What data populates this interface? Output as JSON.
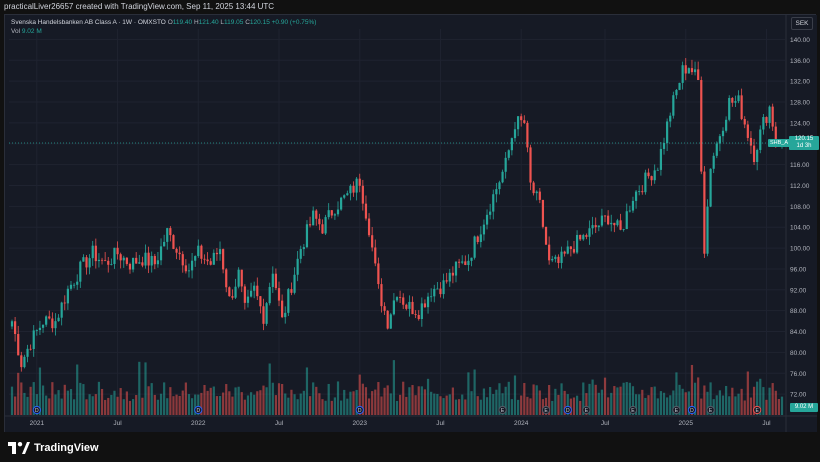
{
  "header": {
    "credit": "practicalLiver26657 created with TradingView.com, Sep 11, 2025 13:44 UTC"
  },
  "legend": {
    "title": "Svenska Handelsbanken AB Class A · 1W · OMXSTO",
    "open_label": "O",
    "open": "119.40",
    "high_label": "H",
    "high": "121.40",
    "low_label": "L",
    "low": "119.05",
    "close_label": "C",
    "close": "120.15",
    "change": "+0.90 (+0.75%)",
    "vol_label": "Vol",
    "vol": "9.02 M"
  },
  "toolbar": {
    "currency": "SEK"
  },
  "price_tag": {
    "value": "120.15",
    "countdown": "1d 3h"
  },
  "symbol_tag": "SHB_A",
  "volume_tag": "9.02 M",
  "footer": {
    "brand": "TradingView"
  },
  "colors": {
    "up": "#26a69a",
    "down": "#ef5350",
    "background": "#161a25",
    "grid": "#1f2330"
  },
  "chart_data": {
    "type": "candlestick",
    "price_axis": {
      "unit": "SEK",
      "ticks": [
        "140.00",
        "136.00",
        "132.00",
        "128.00",
        "124.00",
        "120.00",
        "116.00",
        "112.00",
        "108.00",
        "104.00",
        "100.00",
        "96.00",
        "92.00",
        "88.00",
        "84.00",
        "80.00",
        "76.00",
        "72.00"
      ],
      "range": [
        68,
        142
      ]
    },
    "time_axis": {
      "ticks": [
        "2021",
        "Jul",
        "2022",
        "Jul",
        "2023",
        "Jul",
        "2024",
        "Jul",
        "2025",
        "Jul"
      ]
    },
    "last_close": 120.15,
    "series_anchors": [
      {
        "week": 0,
        "close": 86
      },
      {
        "week": 3,
        "close": 78
      },
      {
        "week": 6,
        "close": 82
      },
      {
        "week": 10,
        "close": 86
      },
      {
        "week": 14,
        "close": 86
      },
      {
        "week": 18,
        "close": 92
      },
      {
        "week": 22,
        "close": 96
      },
      {
        "week": 26,
        "close": 99
      },
      {
        "week": 30,
        "close": 97
      },
      {
        "week": 34,
        "close": 99
      },
      {
        "week": 38,
        "close": 97
      },
      {
        "week": 42,
        "close": 98
      },
      {
        "week": 46,
        "close": 97
      },
      {
        "week": 50,
        "close": 103
      },
      {
        "week": 53,
        "close": 100
      },
      {
        "week": 57,
        "close": 96
      },
      {
        "week": 60,
        "close": 99
      },
      {
        "week": 64,
        "close": 97
      },
      {
        "week": 67,
        "close": 100
      },
      {
        "week": 70,
        "close": 90
      },
      {
        "week": 73,
        "close": 95
      },
      {
        "week": 75,
        "close": 88
      },
      {
        "week": 78,
        "close": 92
      },
      {
        "week": 81,
        "close": 87
      },
      {
        "week": 84,
        "close": 96
      },
      {
        "week": 87,
        "close": 86
      },
      {
        "week": 90,
        "close": 93
      },
      {
        "week": 93,
        "close": 100
      },
      {
        "week": 97,
        "close": 106
      },
      {
        "week": 100,
        "close": 104
      },
      {
        "week": 104,
        "close": 108
      },
      {
        "week": 108,
        "close": 110
      },
      {
        "week": 112,
        "close": 113
      },
      {
        "week": 115,
        "close": 104
      },
      {
        "week": 118,
        "close": 92
      },
      {
        "week": 121,
        "close": 86
      },
      {
        "week": 124,
        "close": 92
      },
      {
        "week": 127,
        "close": 89
      },
      {
        "week": 131,
        "close": 88
      },
      {
        "week": 135,
        "close": 92
      },
      {
        "week": 139,
        "close": 93
      },
      {
        "week": 143,
        "close": 96
      },
      {
        "week": 147,
        "close": 98
      },
      {
        "week": 151,
        "close": 104
      },
      {
        "week": 155,
        "close": 110
      },
      {
        "week": 159,
        "close": 116
      },
      {
        "week": 162,
        "close": 124
      },
      {
        "week": 165,
        "close": 124
      },
      {
        "week": 167,
        "close": 112
      },
      {
        "week": 170,
        "close": 108
      },
      {
        "week": 173,
        "close": 97
      },
      {
        "week": 176,
        "close": 97
      },
      {
        "week": 180,
        "close": 100
      },
      {
        "week": 184,
        "close": 102
      },
      {
        "week": 188,
        "close": 104
      },
      {
        "week": 192,
        "close": 106
      },
      {
        "week": 196,
        "close": 103
      },
      {
        "week": 200,
        "close": 110
      },
      {
        "week": 204,
        "close": 113
      },
      {
        "week": 208,
        "close": 116
      },
      {
        "week": 212,
        "close": 126
      },
      {
        "week": 216,
        "close": 134
      },
      {
        "week": 218,
        "close": 135
      },
      {
        "week": 221,
        "close": 132
      },
      {
        "week": 223,
        "close": 100
      },
      {
        "week": 225,
        "close": 116
      },
      {
        "week": 228,
        "close": 122
      },
      {
        "week": 231,
        "close": 128
      },
      {
        "week": 234,
        "close": 128
      },
      {
        "week": 237,
        "close": 122
      },
      {
        "week": 239,
        "close": 118
      },
      {
        "week": 242,
        "close": 124
      },
      {
        "week": 244,
        "close": 127
      },
      {
        "week": 246,
        "close": 121
      },
      {
        "week": 248,
        "close": 120.15
      }
    ]
  }
}
